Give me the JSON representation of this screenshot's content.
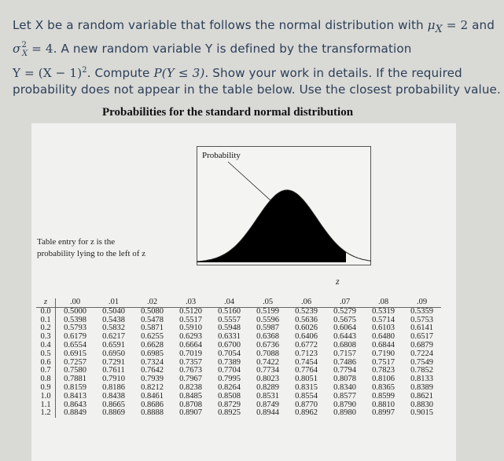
{
  "problem": {
    "lines": [
      [
        "Let X be a random variable that follows the normal distribution with ",
        "μ",
        "X",
        " = 2",
        " and"
      ],
      [
        "σ",
        "X",
        "2",
        " = 4",
        ". A new random variable Y is defined by the transformation"
      ],
      [
        "Y = (X − 1)",
        "2",
        ". Compute ",
        "P(Y ≤ 3)",
        ". Show your work in details. If the required"
      ],
      [
        "probability does not appear in the table below. Use the closest probability value."
      ]
    ]
  },
  "table_title": "Probabilities for the standard normal distribution",
  "figure": {
    "label": "Probability",
    "z_label": "z",
    "shaded_color": "#000000"
  },
  "entry_note": [
    "Table entry for z is the",
    "probability lying to the left of z"
  ],
  "ztable": {
    "headers": [
      "z",
      ".00",
      ".01",
      ".02",
      ".03",
      ".04",
      ".05",
      ".06",
      ".07",
      ".08",
      ".09"
    ],
    "rows": [
      [
        "0.0",
        "0.5000",
        "0.5040",
        "0.5080",
        "0.5120",
        "0.5160",
        "0.5199",
        "0.5239",
        "0.5279",
        "0.5319",
        "0.5359"
      ],
      [
        "0.1",
        "0.5398",
        "0.5438",
        "0.5478",
        "0.5517",
        "0.5557",
        "0.5596",
        "0.5636",
        "0.5675",
        "0.5714",
        "0.5753"
      ],
      [
        "0.2",
        "0.5793",
        "0.5832",
        "0.5871",
        "0.5910",
        "0.5948",
        "0.5987",
        "0.6026",
        "0.6064",
        "0.6103",
        "0.6141"
      ],
      [
        "0.3",
        "0.6179",
        "0.6217",
        "0.6255",
        "0.6293",
        "0.6331",
        "0.6368",
        "0.6406",
        "0.6443",
        "0.6480",
        "0.6517"
      ],
      [
        "0.4",
        "0.6554",
        "0.6591",
        "0.6628",
        "0.6664",
        "0.6700",
        "0.6736",
        "0.6772",
        "0.6808",
        "0.6844",
        "0.6879"
      ],
      [
        "0.5",
        "0.6915",
        "0.6950",
        "0.6985",
        "0.7019",
        "0.7054",
        "0.7088",
        "0.7123",
        "0.7157",
        "0.7190",
        "0.7224"
      ],
      [
        "0.6",
        "0.7257",
        "0.7291",
        "0.7324",
        "0.7357",
        "0.7389",
        "0.7422",
        "0.7454",
        "0.7486",
        "0.7517",
        "0.7549"
      ],
      [
        "0.7",
        "0.7580",
        "0.7611",
        "0.7642",
        "0.7673",
        "0.7704",
        "0.7734",
        "0.7764",
        "0.7794",
        "0.7823",
        "0.7852"
      ],
      [
        "0.8",
        "0.7881",
        "0.7910",
        "0.7939",
        "0.7967",
        "0.7995",
        "0.8023",
        "0.8051",
        "0.8078",
        "0.8106",
        "0.8133"
      ],
      [
        "0.9",
        "0.8159",
        "0.8186",
        "0.8212",
        "0.8238",
        "0.8264",
        "0.8289",
        "0.8315",
        "0.8340",
        "0.8365",
        "0.8389"
      ],
      [
        "1.0",
        "0.8413",
        "0.8438",
        "0.8461",
        "0.8485",
        "0.8508",
        "0.8531",
        "0.8554",
        "0.8577",
        "0.8599",
        "0.8621"
      ],
      [
        "1.1",
        "0.8643",
        "0.8665",
        "0.8686",
        "0.8708",
        "0.8729",
        "0.8749",
        "0.8770",
        "0.8790",
        "0.8810",
        "0.8830"
      ],
      [
        "1.2",
        "0.8849",
        "0.8869",
        "0.8888",
        "0.8907",
        "0.8925",
        "0.8944",
        "0.8962",
        "0.8980",
        "0.8997",
        "0.9015"
      ]
    ]
  }
}
